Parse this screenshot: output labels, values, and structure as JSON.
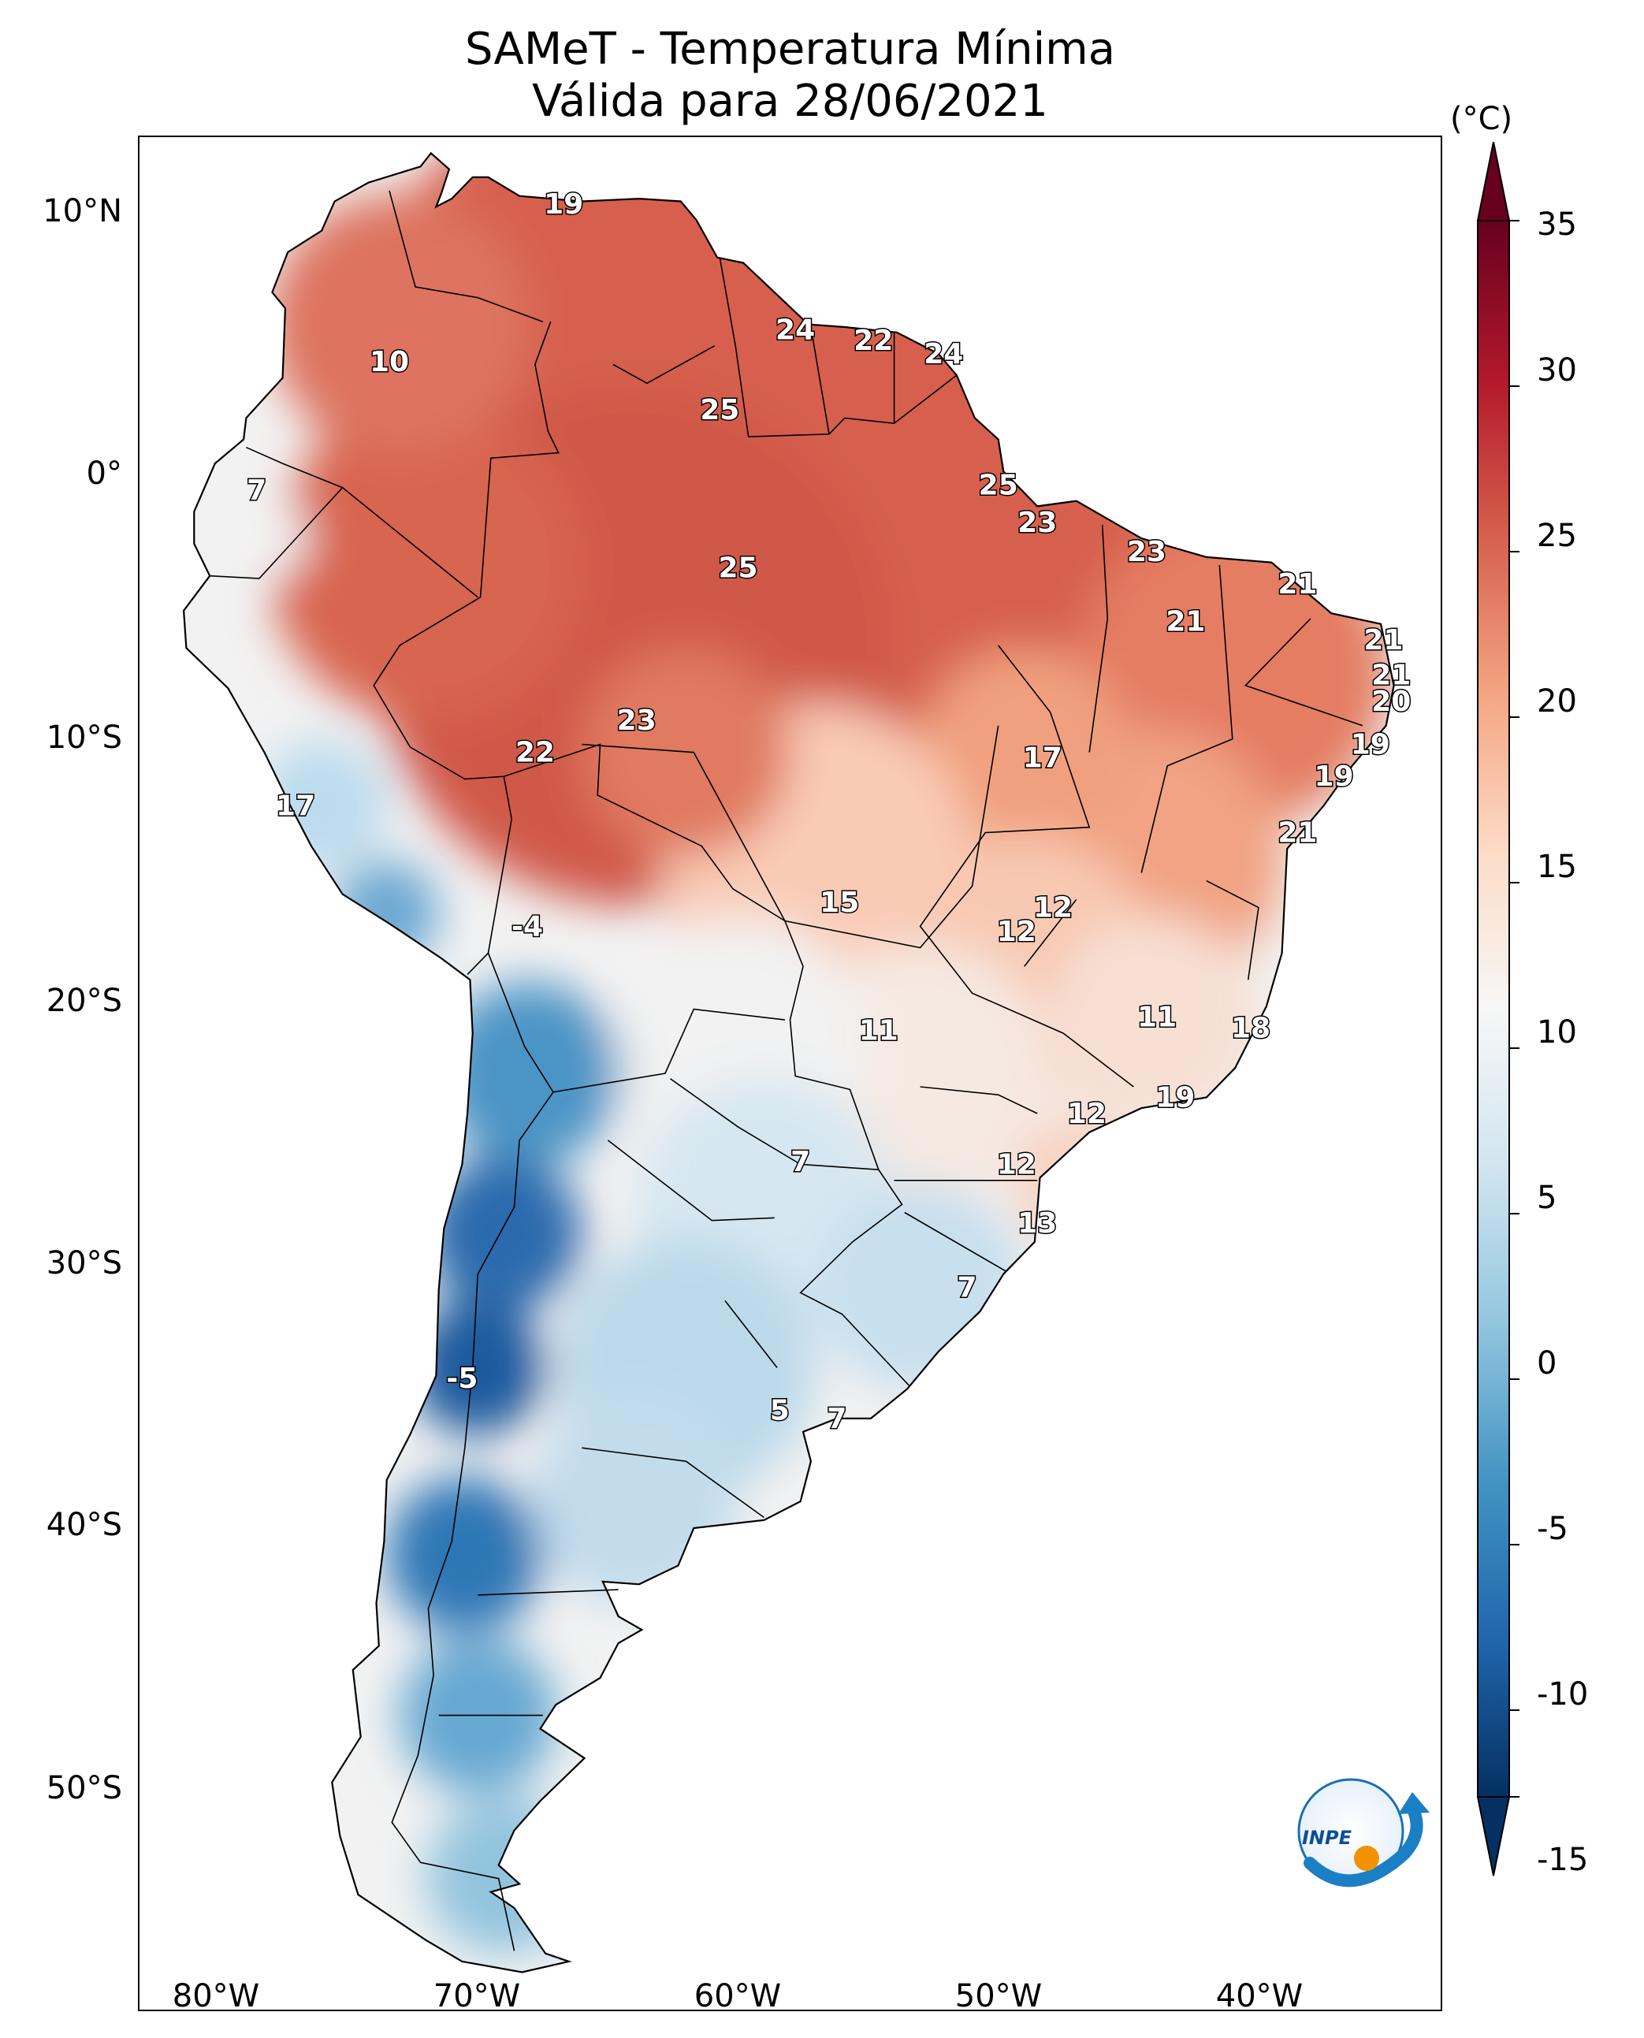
{
  "title_line1": "SAMeT - Temperatura Mínima",
  "title_line2": "Válida para 28/06/2021",
  "colorbar": {
    "unit": "(°C)",
    "ticks": [
      "35",
      "30",
      "25",
      "20",
      "15",
      "10",
      "5",
      "0",
      "-5",
      "-10",
      "-15"
    ],
    "min": -15,
    "max": 35,
    "cmap_colors": [
      "#053061",
      "#2166ac",
      "#4393c3",
      "#92c5de",
      "#d1e5f0",
      "#f7f7f7",
      "#fddbc7",
      "#f4a582",
      "#d6604d",
      "#b2182b",
      "#67001f"
    ]
  },
  "axes": {
    "lat_labels": [
      "10°N",
      "0°",
      "10°S",
      "20°S",
      "30°S",
      "40°S",
      "50°S"
    ],
    "lon_labels": [
      "80°W",
      "70°W",
      "60°W",
      "50°W",
      "40°W"
    ],
    "lon_range": [
      -83,
      -33
    ],
    "lat_range": [
      -57,
      13
    ]
  },
  "city_values": [
    {
      "label": "19",
      "lon": -66.7,
      "lat": 10.5
    },
    {
      "label": "24",
      "lon": -57.8,
      "lat": 5.8
    },
    {
      "label": "22",
      "lon": -54.8,
      "lat": 5.4
    },
    {
      "label": "24",
      "lon": -52.1,
      "lat": 4.9
    },
    {
      "label": "10",
      "lon": -73.4,
      "lat": 4.6
    },
    {
      "label": "25",
      "lon": -60.7,
      "lat": 2.8
    },
    {
      "label": "7",
      "lon": -78.5,
      "lat": -0.2
    },
    {
      "label": "25",
      "lon": -50.0,
      "lat": 0.0
    },
    {
      "label": "23",
      "lon": -48.5,
      "lat": -1.4
    },
    {
      "label": "23",
      "lon": -44.3,
      "lat": -2.5
    },
    {
      "label": "25",
      "lon": -60.0,
      "lat": -3.1
    },
    {
      "label": "21",
      "lon": -38.5,
      "lat": -3.7
    },
    {
      "label": "21",
      "lon": -42.8,
      "lat": -5.1
    },
    {
      "label": "21",
      "lon": -35.2,
      "lat": -5.8
    },
    {
      "label": "21",
      "lon": -34.9,
      "lat": -7.1
    },
    {
      "label": "20",
      "lon": -34.9,
      "lat": -8.1
    },
    {
      "label": "23",
      "lon": -63.9,
      "lat": -8.8
    },
    {
      "label": "19",
      "lon": -35.7,
      "lat": -9.7
    },
    {
      "label": "22",
      "lon": -67.8,
      "lat": -10.0
    },
    {
      "label": "17",
      "lon": -48.3,
      "lat": -10.2
    },
    {
      "label": "19",
      "lon": -37.1,
      "lat": -10.9
    },
    {
      "label": "17",
      "lon": -77.0,
      "lat": -12.0
    },
    {
      "label": "21",
      "lon": -38.5,
      "lat": -13.0
    },
    {
      "label": "12",
      "lon": -47.9,
      "lat": -15.8
    },
    {
      "label": "15",
      "lon": -56.1,
      "lat": -15.6
    },
    {
      "label": "-4",
      "lon": -68.1,
      "lat": -16.5
    },
    {
      "label": "12",
      "lon": -49.3,
      "lat": -16.7
    },
    {
      "label": "11",
      "lon": -43.9,
      "lat": -19.9
    },
    {
      "label": "18",
      "lon": -40.3,
      "lat": -20.3
    },
    {
      "label": "11",
      "lon": -54.6,
      "lat": -20.4
    },
    {
      "label": "19",
      "lon": -43.2,
      "lat": -22.9
    },
    {
      "label": "12",
      "lon": -46.6,
      "lat": -23.5
    },
    {
      "label": "7",
      "lon": -57.6,
      "lat": -25.3
    },
    {
      "label": "12",
      "lon": -49.3,
      "lat": -25.4
    },
    {
      "label": "13",
      "lon": -48.5,
      "lat": -27.6
    },
    {
      "label": "7",
      "lon": -51.2,
      "lat": -30.0
    },
    {
      "label": "-5",
      "lon": -70.6,
      "lat": -33.4
    },
    {
      "label": "5",
      "lon": -58.4,
      "lat": -34.6
    },
    {
      "label": "7",
      "lon": -56.2,
      "lat": -34.9
    }
  ],
  "logo": {
    "text": "INPE"
  }
}
